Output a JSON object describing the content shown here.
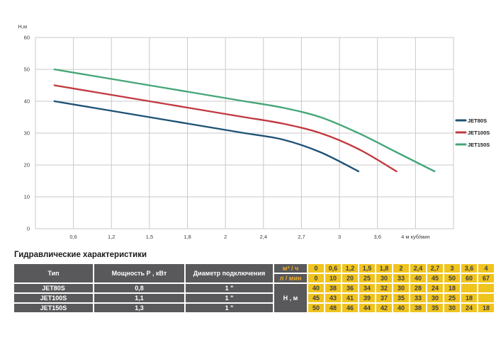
{
  "chart": {
    "y_axis_label": "Н,м",
    "y_ticks": [
      "0",
      "10",
      "20",
      "30",
      "40",
      "50",
      "60"
    ],
    "x_tick_labels": [
      "0,6",
      "1,2",
      "1,5",
      "1,8",
      "2",
      "2,4",
      "2,7",
      "3",
      "3,6",
      "4 м куб/мин"
    ],
    "grid_color": "#c9c9c9",
    "tick_text_color": "#3c3c3c",
    "legend_text_color": "#1a1a1a"
  },
  "chart_data": {
    "type": "line",
    "title": "",
    "xlabel": "м куб/мин",
    "ylabel": "Н,м",
    "x": [
      0,
      0.6,
      1.2,
      1.5,
      1.8,
      2,
      2.4,
      2.7,
      3,
      3.6,
      4
    ],
    "ylim": [
      0,
      60
    ],
    "grid": true,
    "legend_position": "right",
    "series": [
      {
        "name": "JET80S",
        "color": "#1e5276",
        "values": [
          40,
          38,
          36,
          34,
          32,
          30,
          28,
          24,
          18,
          null,
          null
        ]
      },
      {
        "name": "JET100S",
        "color": "#c03a40",
        "values": [
          45,
          43,
          41,
          39,
          37,
          35,
          33,
          30,
          25,
          18,
          null
        ]
      },
      {
        "name": "JET150S",
        "color": "#45a678",
        "values": [
          50,
          48,
          46,
          44,
          42,
          40,
          38,
          35,
          30,
          24,
          18
        ]
      }
    ]
  },
  "table": {
    "title": "Гидравлические характеристики",
    "col_headers": [
      "Тип",
      "Мощность Р , кВт",
      "Диаметр подключения"
    ],
    "flow_label_m3h": "м³ / ч",
    "flow_label_lmin": "л / мин",
    "head_label": "Н , м",
    "flow_m3h": [
      "0",
      "0,6",
      "1,2",
      "1,5",
      "1,8",
      "2",
      "2,4",
      "2,7",
      "3",
      "3,6",
      "4"
    ],
    "flow_lmin": [
      "0",
      "10",
      "20",
      "25",
      "30",
      "33",
      "40",
      "45",
      "50",
      "60",
      "67"
    ],
    "pumps": [
      {
        "type": "JET80S",
        "power": "0,8",
        "diameter": "1 \"",
        "heads": [
          "40",
          "38",
          "36",
          "34",
          "32",
          "30",
          "28",
          "24",
          "18",
          "",
          ""
        ]
      },
      {
        "type": "JET100S",
        "power": "1,1",
        "diameter": "1 \"",
        "heads": [
          "45",
          "43",
          "41",
          "39",
          "37",
          "35",
          "33",
          "30",
          "25",
          "18",
          ""
        ]
      },
      {
        "type": "JET150S",
        "power": "1,3",
        "diameter": "1 \"",
        "heads": [
          "50",
          "48",
          "46",
          "44",
          "42",
          "40",
          "38",
          "35",
          "30",
          "24",
          "18"
        ]
      }
    ],
    "colors": {
      "header_bg": "#59595b",
      "header_text": "#ffffff",
      "unit_text": "#efac2a",
      "value_bg": "#f0c41e",
      "value_text": "#3e3e3e"
    }
  }
}
